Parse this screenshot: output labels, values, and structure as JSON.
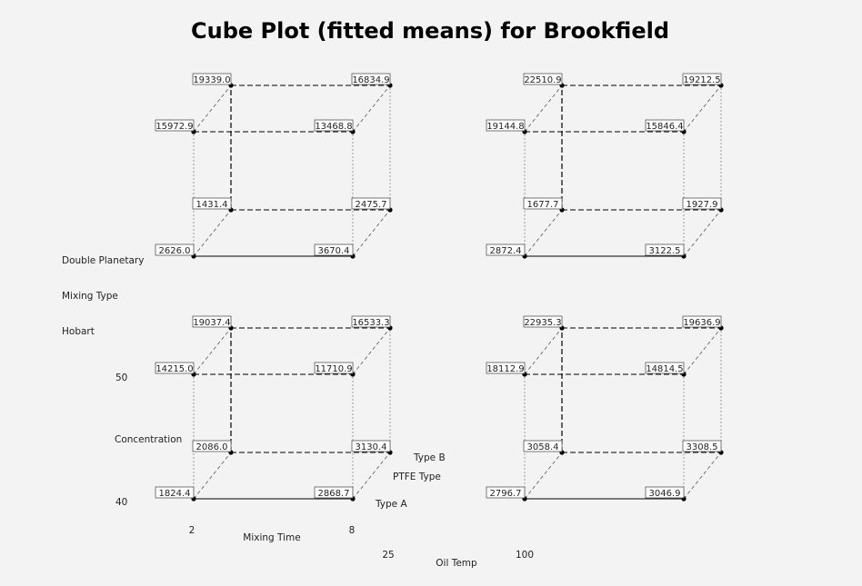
{
  "chart_data": {
    "type": "cube",
    "title": "Cube Plot (fitted means) for Brookfield",
    "factors": {
      "mixing_time": {
        "label": "Mixing Time",
        "levels": [
          "2",
          "8"
        ]
      },
      "ptfe_type": {
        "label": "PTFE Type",
        "levels": [
          "Type A",
          "Type B"
        ]
      },
      "concentration": {
        "label": "Concentration",
        "levels": [
          "40",
          "50"
        ]
      },
      "oil_temp": {
        "label": "Oil Temp",
        "levels": [
          "25",
          "100"
        ]
      },
      "mixing_type": {
        "label": "Mixing Type",
        "levels": [
          "Hobart",
          "Double Planetary"
        ]
      }
    },
    "cubes": [
      {
        "mixing_type": "Double Planetary",
        "oil_temp": "25",
        "values": {
          "t2_A_c40": "2626.0",
          "t8_A_c40": "3670.4",
          "t2_B_c40": "1431.4",
          "t8_B_c40": "2475.7",
          "t2_A_c50": "15972.9",
          "t8_A_c50": "13468.8",
          "t2_B_c50": "19339.0",
          "t8_B_c50": "16834.9"
        }
      },
      {
        "mixing_type": "Double Planetary",
        "oil_temp": "100",
        "values": {
          "t2_A_c40": "2872.4",
          "t8_A_c40": "3122.5",
          "t2_B_c40": "1677.7",
          "t8_B_c40": "1927.9",
          "t2_A_c50": "19144.8",
          "t8_A_c50": "15846.4",
          "t2_B_c50": "22510.9",
          "t8_B_c50": "19212.5"
        }
      },
      {
        "mixing_type": "Hobart",
        "oil_temp": "25",
        "values": {
          "t2_A_c40": "1824.4",
          "t8_A_c40": "2868.7",
          "t2_B_c40": "2086.0",
          "t8_B_c40": "3130.4",
          "t2_A_c50": "14215.0",
          "t8_A_c50": "11710.9",
          "t2_B_c50": "19037.4",
          "t8_B_c50": "16533.3"
        }
      },
      {
        "mixing_type": "Hobart",
        "oil_temp": "100",
        "values": {
          "t2_A_c40": "2796.7",
          "t8_A_c40": "3046.9",
          "t2_B_c40": "3058.4",
          "t8_B_c40": "3308.5",
          "t2_A_c50": "18112.9",
          "t8_A_c50": "14814.5",
          "t2_B_c50": "22935.3",
          "t8_B_c50": "19636.9"
        }
      }
    ]
  }
}
